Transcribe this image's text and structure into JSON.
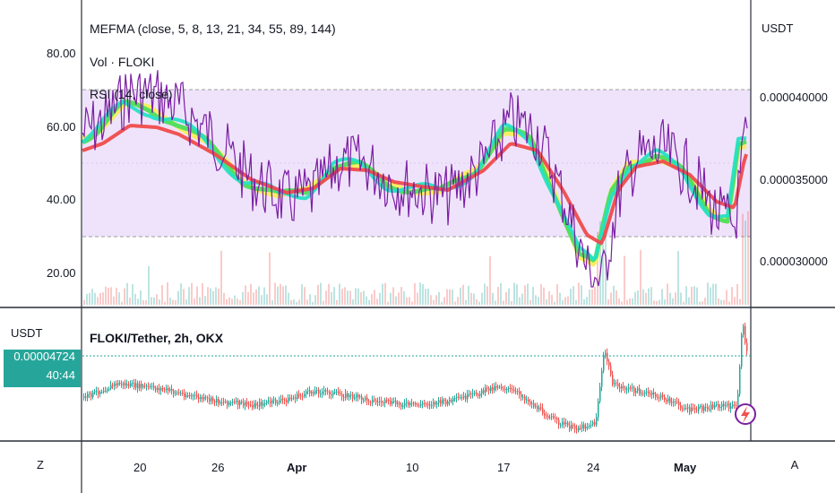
{
  "indicators": {
    "mefma": "MEFMA (close, 5, 8, 13, 21, 34, 55, 89, 144)",
    "volume": "Vol · FLOKI",
    "rsi": "RSI (14, close)"
  },
  "pane_top": {
    "left_axis_labels": [
      "80.00",
      "60.00",
      "40.00",
      "20.00"
    ],
    "right_axis_title": "USDT",
    "right_axis_labels": [
      "0.000040000",
      "0.000035000",
      "0.000030000"
    ]
  },
  "pane_bottom": {
    "symbol": "FLOKI/Tether, 2h, OKX",
    "left_axis_title": "USDT",
    "price_tag": "0.00004724",
    "countdown": "40:44"
  },
  "time_axis": {
    "labels": [
      "20",
      "26",
      "Apr",
      "10",
      "17",
      "24",
      "May"
    ],
    "left_button": "Z",
    "right_button": "A"
  },
  "colors": {
    "rsi_line": "#7b1fa2",
    "rsi_band": "#efe3fb",
    "ema_fast_a": "#26e0c2",
    "ema_fast_b": "#4ddd5c",
    "ema_mid": "#f5ee5c",
    "ema_slow": "#ef4b4b",
    "up": "#26a69a",
    "down": "#ef5350",
    "tag": "#26a69a"
  }
}
